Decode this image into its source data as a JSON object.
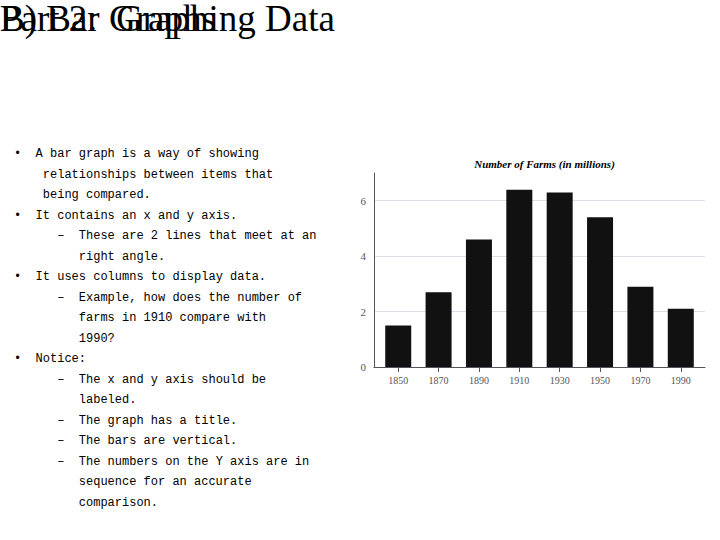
{
  "chart_data": {
    "type": "bar",
    "title": "Number of Farms (in millions)",
    "x": [
      1850,
      1870,
      1890,
      1910,
      1930,
      1950,
      1970,
      1990
    ],
    "values": [
      1.5,
      2.7,
      4.6,
      6.4,
      6.3,
      5.4,
      2.9,
      2.1
    ],
    "color": "#111111",
    "xlim": [
      1838,
      2002
    ],
    "xticks": [
      1850,
      1870,
      1890,
      1910,
      1930,
      1950,
      1970,
      1990
    ],
    "ylim": [
      0,
      7
    ],
    "yticks": [
      0,
      2,
      4,
      6
    ],
    "grid": true,
    "annotations": [
      "Part 2:  Graphing Data",
      "B) Bar Graphs",
      "•  A bar graph is a way of showing",
      "    relationships between items that",
      "    being compared.",
      "•  It contains an x and y axis.",
      "      –  These are 2 lines that meet at an",
      "         right angle.",
      "•  It uses columns to display data.",
      "      –  Example, how does the number of",
      "         farms in 1910 compare with",
      "         1990?",
      "•  Notice:",
      "      –  The x and y axis should be",
      "         labeled.",
      "      –  The graph has a title.",
      "      –  The bars are vertical.",
      "      –  The numbers on the Y axis are in",
      "         sequence for an accurate",
      "         comparison."
    ]
  }
}
